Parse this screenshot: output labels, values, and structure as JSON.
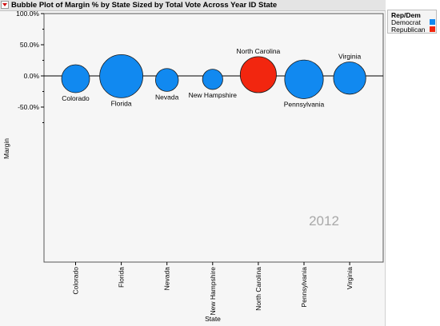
{
  "header": {
    "title": "Bubble Plot of Margin % by State Sized by Total Vote Across Year ID State"
  },
  "legend": {
    "title": "Rep/Dem",
    "items": [
      {
        "label": "Democrat",
        "color": "#1189f0"
      },
      {
        "label": "Republican",
        "color": "#f2260f"
      }
    ]
  },
  "chart_data": {
    "type": "scatter",
    "xlabel": "State",
    "ylabel": "Margin",
    "categories": [
      "Colorado",
      "Florida",
      "Nevada",
      "New Hampshire",
      "North Carolina",
      "Pennsylvania",
      "Virginia"
    ],
    "ylim": [
      -100,
      100
    ],
    "yticks": [
      "100.0%",
      "50.0%",
      "0.0%",
      "-50.0%"
    ],
    "ytick_values": [
      100,
      50,
      0,
      -50
    ],
    "reference_line_y": 0,
    "year_label": "2012",
    "points": [
      {
        "state": "Colorado",
        "margin": -4.5,
        "party": "Democrat",
        "relative_size": 0.42
      },
      {
        "state": "Florida",
        "margin": -0.5,
        "party": "Democrat",
        "relative_size": 1.0
      },
      {
        "state": "Nevada",
        "margin": -6.5,
        "party": "Democrat",
        "relative_size": 0.28
      },
      {
        "state": "New Hampshire",
        "margin": -5.5,
        "party": "Democrat",
        "relative_size": 0.22
      },
      {
        "state": "North Carolina",
        "margin": 2.0,
        "party": "Republican",
        "relative_size": 0.7
      },
      {
        "state": "Pennsylvania",
        "margin": -5.5,
        "party": "Democrat",
        "relative_size": 0.8
      },
      {
        "state": "Virginia",
        "margin": -3.5,
        "party": "Democrat",
        "relative_size": 0.56
      }
    ],
    "grid": false,
    "legend_position": "top-right"
  }
}
